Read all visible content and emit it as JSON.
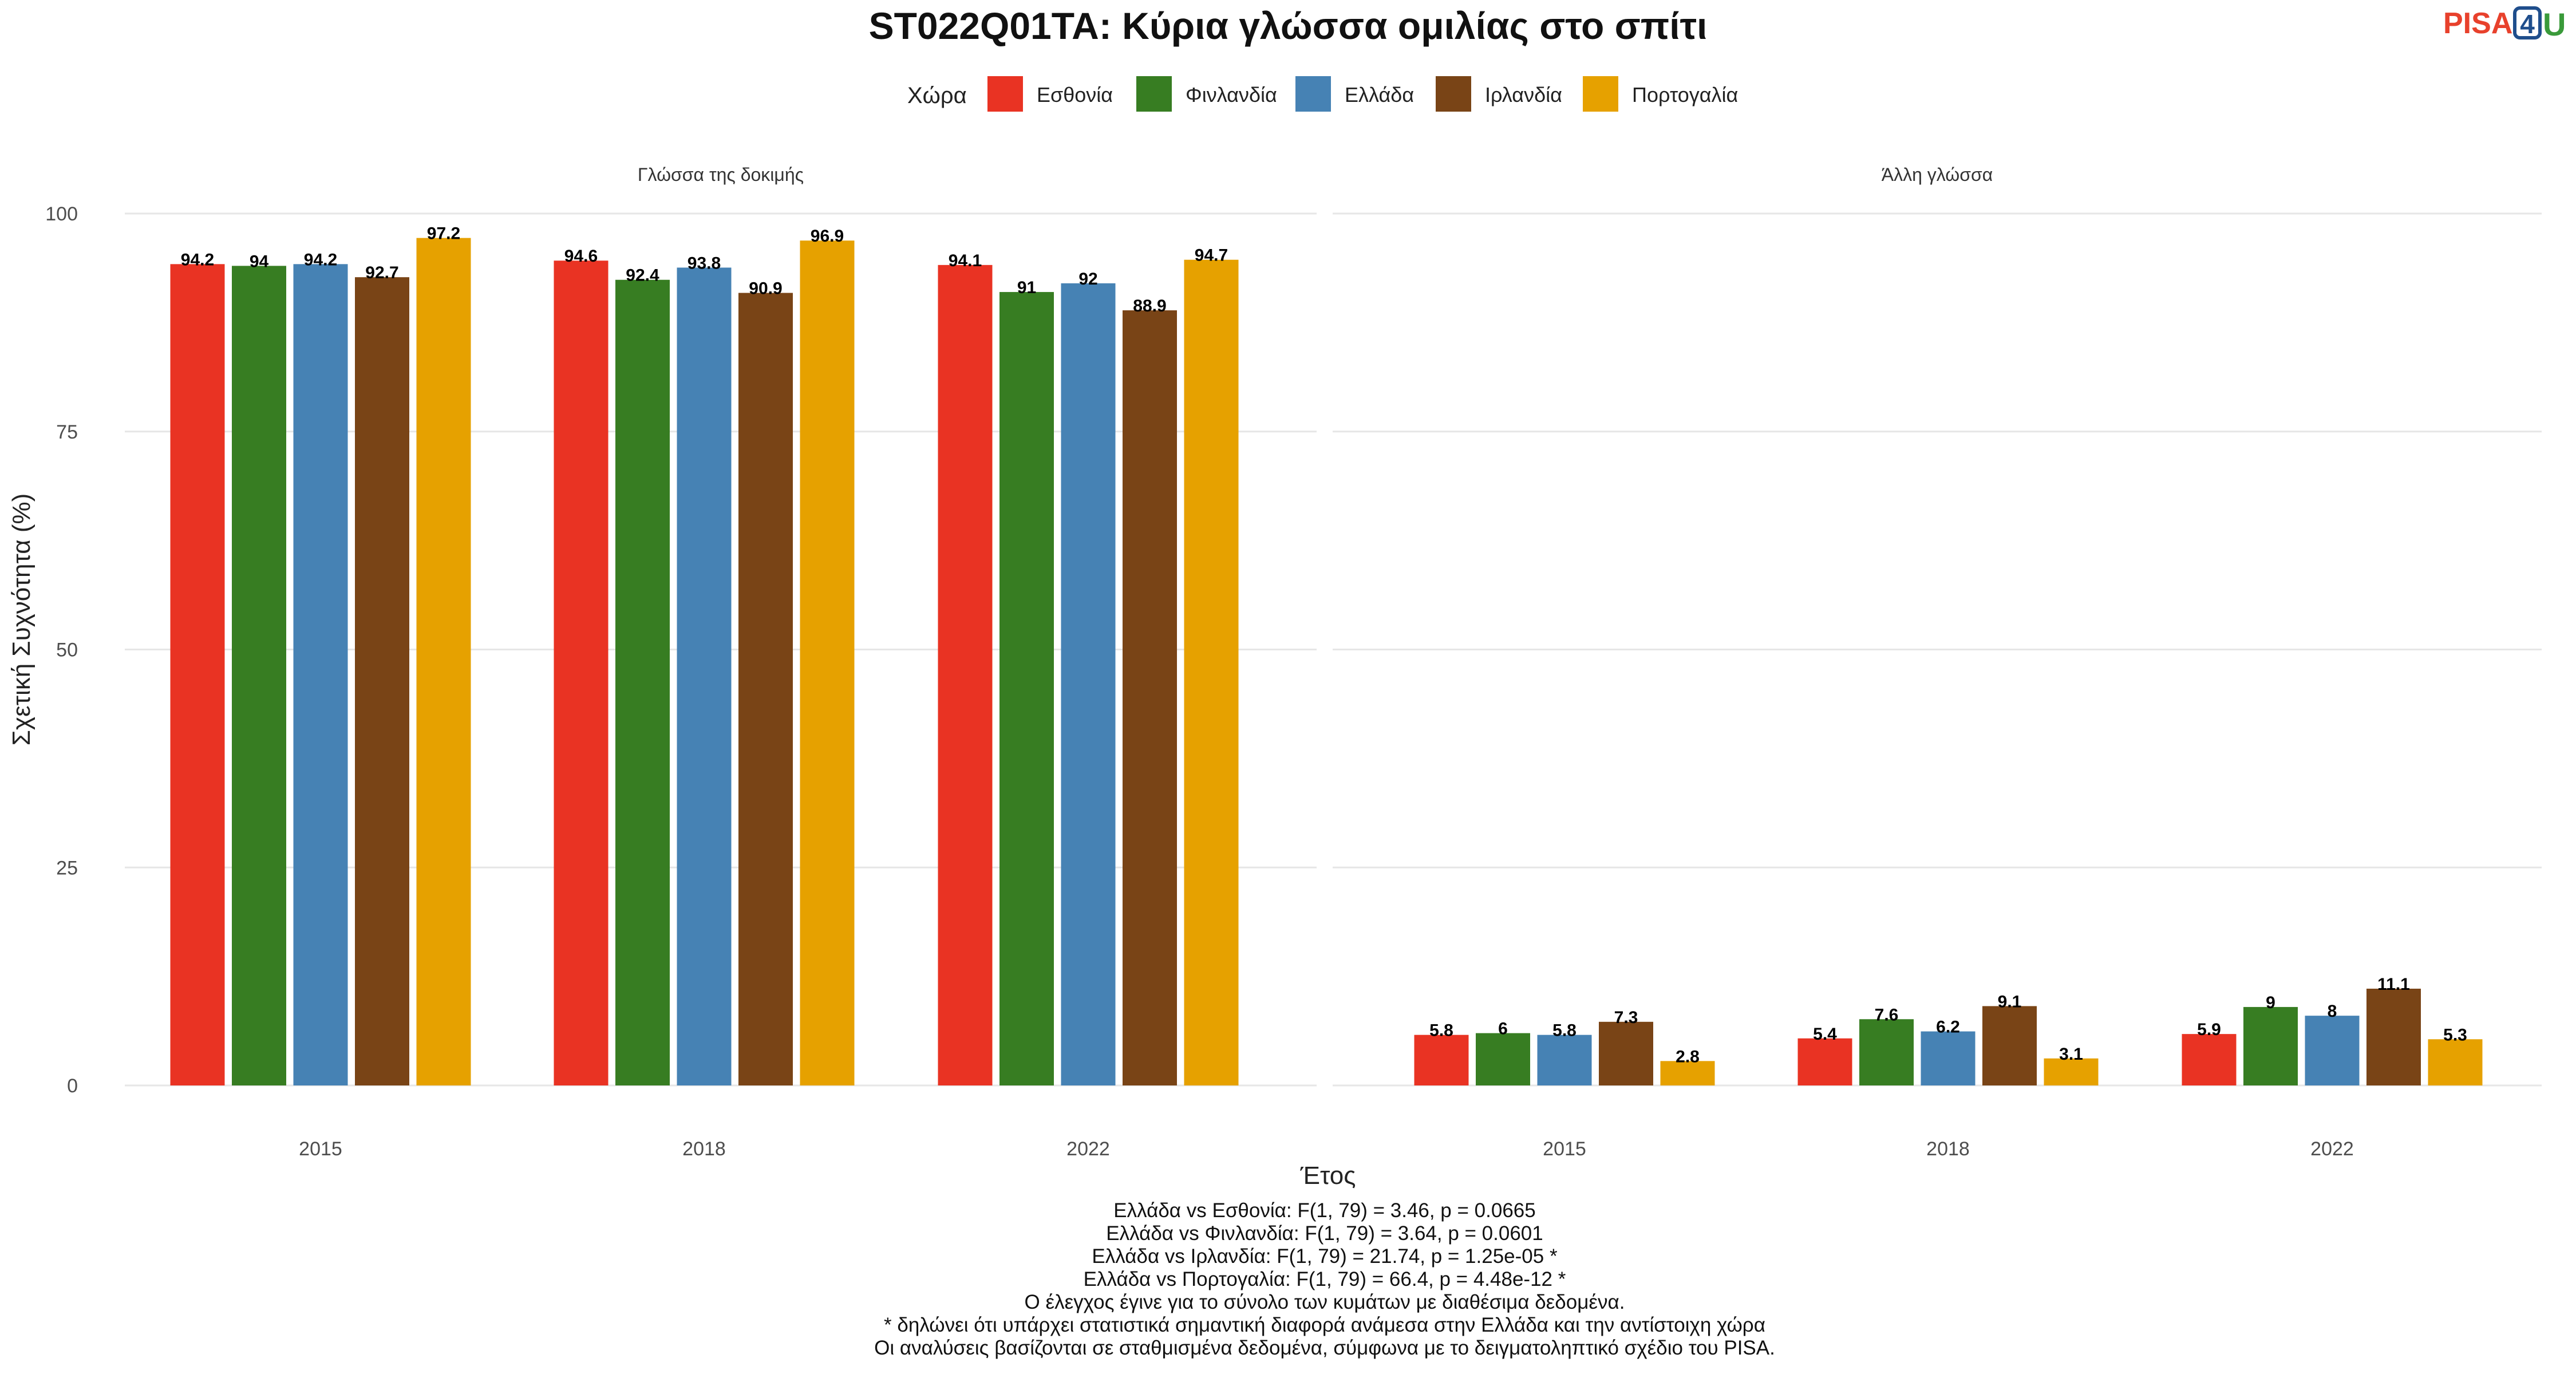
{
  "chart_data": {
    "type": "bar",
    "title": "ST022Q01TA: Κύρια γλώσσα ομιλίας στο σπίτι",
    "xlabel": "Έτος",
    "ylabel": "Σχετική Συχνότητα (%)",
    "ylim": [
      0,
      100
    ],
    "yticks": [
      "0",
      "25",
      "50",
      "75",
      "100"
    ],
    "legend": {
      "title": "Χώρα",
      "position": "top"
    },
    "grid": true,
    "categories": [
      "2015",
      "2018",
      "2022"
    ],
    "series": [
      {
        "name": "Εσθονία",
        "color": "#e93323"
      },
      {
        "name": "Φινλανδία",
        "color": "#377d22"
      },
      {
        "name": "Ελλάδα",
        "color": "#4682b4"
      },
      {
        "name": "Ιρλανδία",
        "color": "#794416"
      },
      {
        "name": "Πορτογαλία",
        "color": "#e6a100"
      }
    ],
    "facets": [
      {
        "name": "Γλώσσα της δοκιμής",
        "values": [
          [
            94.2,
            94.6,
            94.1
          ],
          [
            94,
            92.4,
            91
          ],
          [
            94.2,
            93.8,
            92
          ],
          [
            92.7,
            90.9,
            88.9
          ],
          [
            97.2,
            96.9,
            94.7
          ]
        ],
        "labels": [
          [
            "94.2",
            "94.6",
            "94.1"
          ],
          [
            "94",
            "92.4",
            "91"
          ],
          [
            "94.2",
            "93.8",
            "92"
          ],
          [
            "92.7",
            "90.9",
            "88.9"
          ],
          [
            "97.2",
            "96.9",
            "94.7"
          ]
        ]
      },
      {
        "name": "Άλλη γλώσσα",
        "values": [
          [
            5.8,
            5.4,
            5.9
          ],
          [
            6,
            7.6,
            9
          ],
          [
            5.8,
            6.2,
            8
          ],
          [
            7.3,
            9.1,
            11.1
          ],
          [
            2.8,
            3.1,
            5.3
          ]
        ],
        "labels": [
          [
            "5.8",
            "5.4",
            "5.9"
          ],
          [
            "6",
            "7.6",
            "9"
          ],
          [
            "5.8",
            "6.2",
            "8"
          ],
          [
            "7.3",
            "9.1",
            "11.1"
          ],
          [
            "2.8",
            "3.1",
            "5.3"
          ]
        ]
      }
    ]
  },
  "caption": [
    "Ελλάδα vs Εσθονία: F(1, 79) = 3.46, p = 0.0665",
    "Ελλάδα vs Φινλανδία: F(1, 79) = 3.64, p = 0.0601",
    "Ελλάδα vs Ιρλανδία: F(1, 79) = 21.74, p = 1.25e-05 *",
    "Ελλάδα vs Πορτογαλία: F(1, 79) = 66.4, p = 4.48e-12 *",
    "Ο έλεγχος έγινε για το σύνολο των κυμάτων με διαθέσιμα δεδομένα.",
    "* δηλώνει ότι υπάρχει στατιστικά σημαντική διαφορά ανάμεσα στην Ελλάδα και την αντίστοιχη χώρα",
    "Οι αναλύσεις βασίζονται σε σταθμισμένα δεδομένα, σύμφωνα με το δειγματοληπτικό σχέδιο του PISA."
  ],
  "logo": {
    "part1": "PISA",
    "part2": "4",
    "part3": "U"
  }
}
